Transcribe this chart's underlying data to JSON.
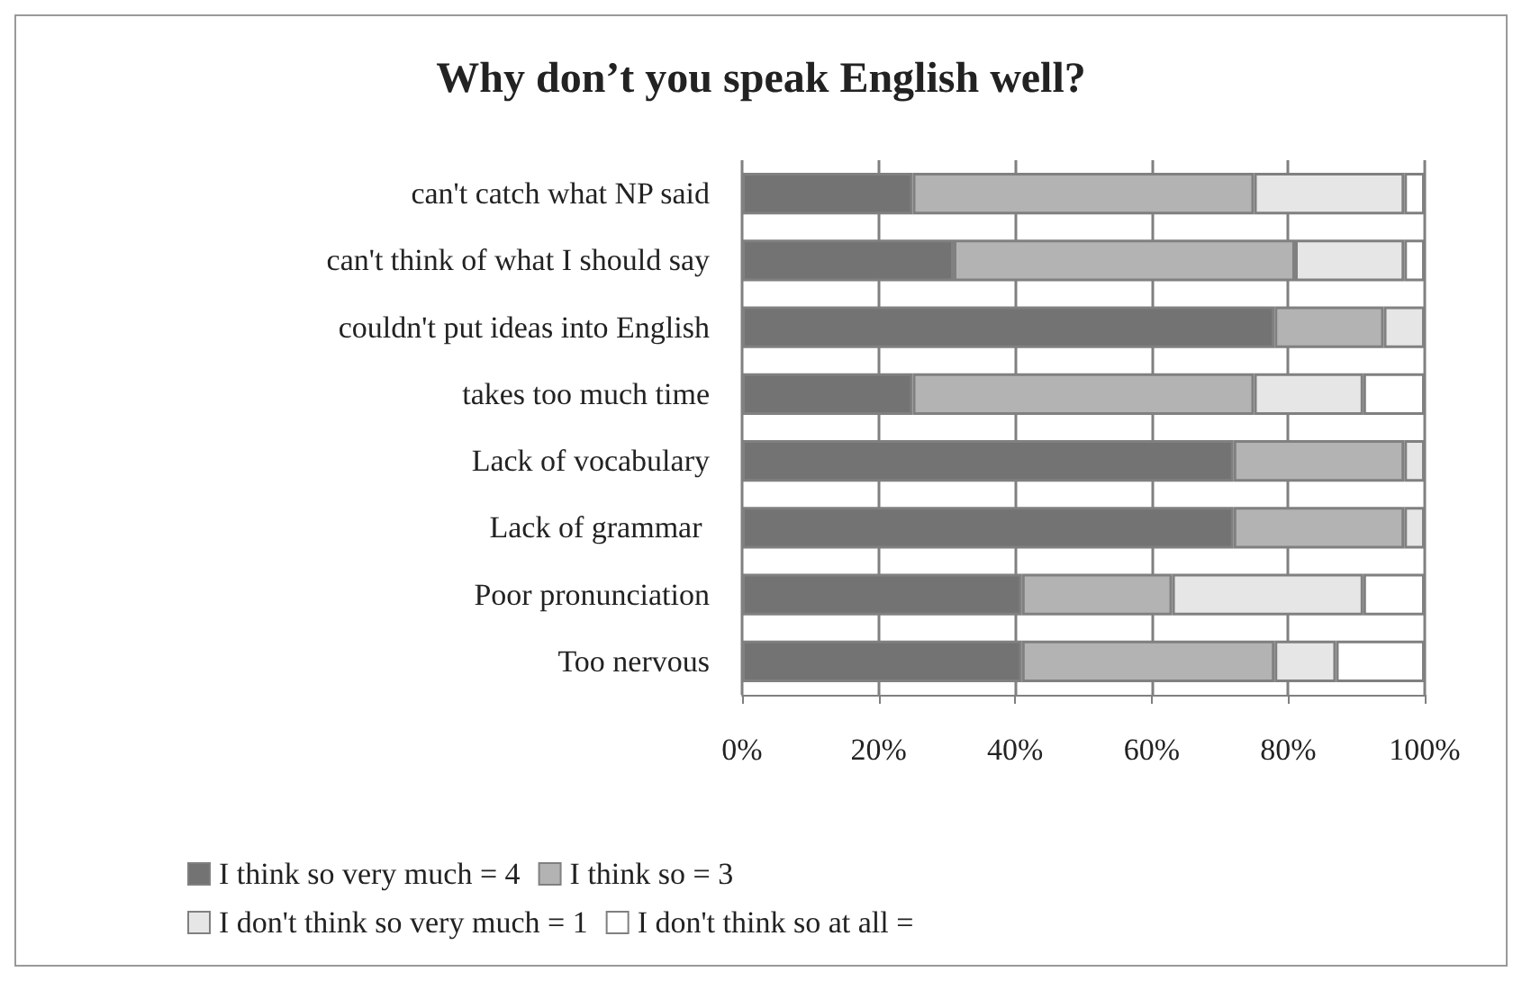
{
  "chart_data": {
    "type": "bar",
    "orientation": "horizontal",
    "stacked": true,
    "title": "Why don’t you speak English well?",
    "categories": [
      "can't catch what NP said",
      "can't think of what I should say",
      "couldn't put ideas into English",
      "takes too much time",
      "Lack of vocabulary",
      "Lack of grammar ",
      "Poor pronunciation",
      "Too nervous"
    ],
    "series": [
      {
        "name": "I think so very much = 4",
        "color": "#737373",
        "values": [
          25,
          31,
          78,
          25,
          72,
          72,
          41,
          41
        ]
      },
      {
        "name": "I think so = 3",
        "color": "#b3b3b3",
        "values": [
          50,
          50,
          16,
          50,
          25,
          25,
          22,
          37
        ]
      },
      {
        "name": "I don't think so very much = 1",
        "color": "#e6e6e6",
        "values": [
          22,
          16,
          6,
          16,
          3,
          3,
          28,
          9
        ]
      },
      {
        "name": "I don't think so at all =",
        "color": "#ffffff",
        "values": [
          3,
          3,
          0,
          9,
          0,
          0,
          9,
          13
        ]
      }
    ],
    "xlim": [
      0,
      100
    ],
    "xticks": [
      {
        "value": 0,
        "label": "0%"
      },
      {
        "value": 20,
        "label": "20%"
      },
      {
        "value": 40,
        "label": "40%"
      },
      {
        "value": 60,
        "label": "60%"
      },
      {
        "value": 80,
        "label": "80%"
      },
      {
        "value": 100,
        "label": "100%"
      }
    ],
    "grid": "x",
    "legend": "bottom"
  }
}
